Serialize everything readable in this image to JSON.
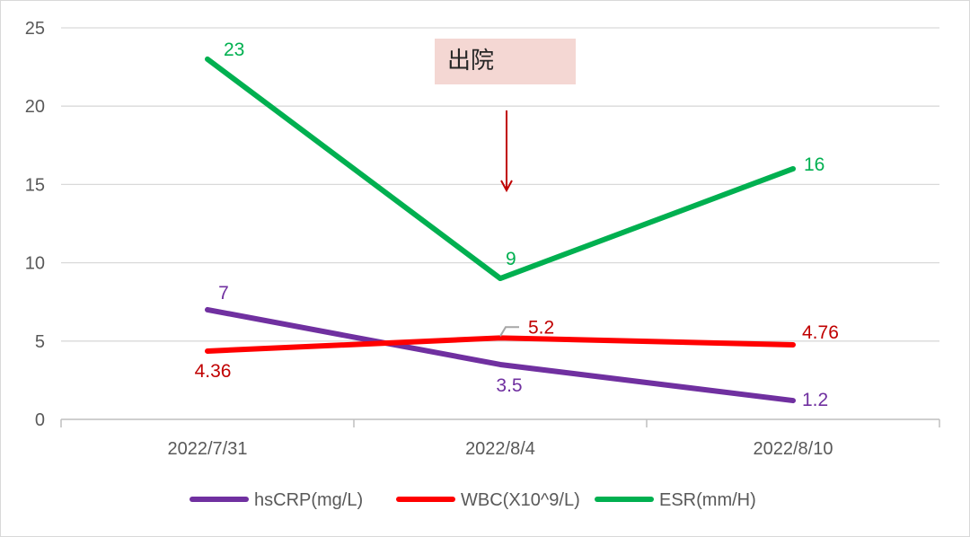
{
  "chart_data": {
    "type": "line",
    "categories": [
      "2022/7/31",
      "2022/8/4",
      "2022/8/10"
    ],
    "ylim": [
      0,
      25
    ],
    "yticks": [
      0,
      5,
      10,
      15,
      20,
      25
    ],
    "grid": true,
    "legend_position": "bottom",
    "series": [
      {
        "name": "hsCRP(mg/L)",
        "values": [
          7,
          3.5,
          1.2
        ],
        "labels": [
          "7",
          "3.5",
          "1.2"
        ],
        "color": "#7030a0"
      },
      {
        "name": "WBC(X10^9/L)",
        "values": [
          4.36,
          5.2,
          4.76
        ],
        "labels": [
          "4.36",
          "5.2",
          "4.76"
        ],
        "color": "#ff0000"
      },
      {
        "name": "ESR(mm/H)",
        "values": [
          23,
          9,
          16
        ],
        "labels": [
          "23",
          "9",
          "16"
        ],
        "color": "#00b050"
      }
    ],
    "annotation": {
      "text": "出院",
      "category": "2022/8/4",
      "arrow_color": "#c00000",
      "box_color": "#f4d7d3"
    },
    "label_colors": {
      "hsCRP(mg/L)": "#7030a0",
      "WBC(X10^9/L)": "#c00000",
      "ESR(mm/H)": "#00b050"
    }
  }
}
